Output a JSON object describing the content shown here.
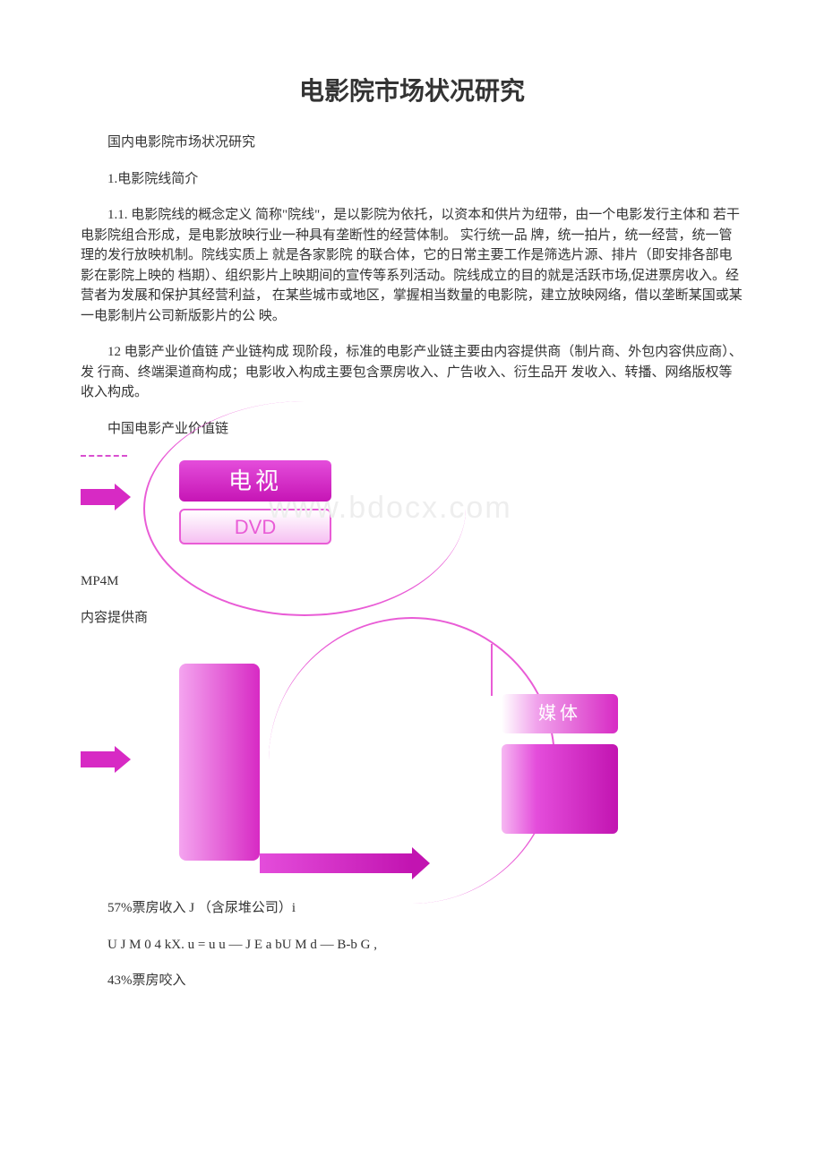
{
  "title": "电影院市场状况研究",
  "p1": "国内电影院市场状况研究",
  "p2": "1.电影院线简介",
  "p3": "1.1. 电影院线的概念定义 简称\"院线\"，是以影院为依托，以资本和供片为纽带，由一个电影发行主体和 若干电影院组合形成，是电影放映行业一种具有垄断性的经营体制。 实行统一品 牌，统一拍片，统一经营，统一管理的发行放映机制。院线实质上 就是各家影院 的联合体，它的日常主要工作是筛选片源、排片（即安排各部电影在影院上映的 档期）、组织影片上映期间的宣传等系列活动。院线成立的目的就是活跃市场,促进票房收入。经营者为发展和保护其经营利益， 在某些城市或地区，掌握相当数量的电影院，建立放映网络，借以垄断某国或某一电影制片公司新版影片的公 映。",
  "p4": "12 电影产业价值链 产业链构成 现阶段，标准的电影产业链主要由内容提供商（制片商、外包内容供应商）、发 行商、终端渠道商构成；电影收入构成主要包含票房收入、广告收入、衍生品开 发收入、转播、网络版权等收入构成。",
  "p5": "中国电影产业价值链",
  "p6": "MP4M",
  "p7": "内容提供商",
  "p8": "57%票房收入 J （含尿堆公司）i",
  "p9": "U J M 0 4 kX. u = u u — J E a bU M d — B-b G ,",
  "p10": "43%票房咬入",
  "dia1": {
    "tv": "电视",
    "dvd": "DVD",
    "watermark": "www.bdocx.com"
  },
  "dia2": {
    "media": "媒体"
  },
  "colors": {
    "text": "#333333",
    "magenta_dark": "#c214b1",
    "magenta": "#d72ac4",
    "magenta_light": "#e95cd6",
    "pink_light": "#f6b8f2",
    "watermark": "#eeeeee",
    "background": "#ffffff"
  }
}
